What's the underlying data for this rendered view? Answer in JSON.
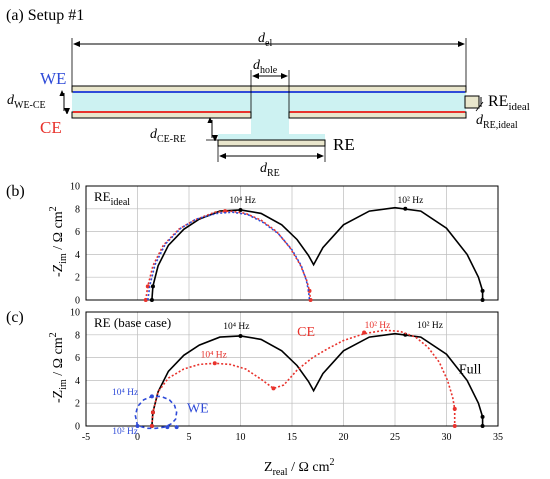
{
  "colors": {
    "black": "#000000",
    "red": "#e8322c",
    "blue": "#2f4bd8",
    "violet": "#6a3cc8",
    "electrolyte": "#cdf2f2",
    "electrode": "#e9e6cc",
    "grid": "#bdbdbd"
  },
  "setup": {
    "title": "(a) Setup #1",
    "we_label": "WE",
    "ce_label": "CE",
    "re_label": "RE",
    "re_ideal_label": "RE",
    "re_ideal_sub": "ideal",
    "d_el": "d",
    "d_el_sub": "el",
    "d_hole": "d",
    "d_hole_sub": "hole",
    "d_we_ce": "d",
    "d_we_ce_sub": "WE-CE",
    "d_ce_re": "d",
    "d_ce_re_sub": "CE-RE",
    "d_re": "d",
    "d_re_sub": "RE",
    "d_re_ideal": "d",
    "d_re_ideal_sub": "RE,ideal"
  },
  "chart_data": [
    {
      "type": "line",
      "panel_label": "(b)",
      "legend_text": "RE",
      "legend_sub": "ideal",
      "xlim": [
        -5,
        35
      ],
      "ylim": [
        0,
        10
      ],
      "yticks": [
        0,
        2,
        4,
        6,
        8,
        10
      ],
      "grid": true,
      "annotations": [
        {
          "text": "10⁴ Hz",
          "x": 10.2,
          "y": 8.5,
          "color": "#000000"
        },
        {
          "text": "10² Hz",
          "x": 26.5,
          "y": 8.5,
          "color": "#000000"
        }
      ],
      "series": [
        {
          "role": "full",
          "color": "#000000",
          "dash": "",
          "x": [
            1.4,
            1.5,
            2.0,
            3.0,
            4.5,
            6.0,
            8.0,
            10.0,
            12.0,
            14.0,
            15.5,
            16.6,
            17.1,
            18.0,
            20.0,
            22.5,
            25.0,
            27.5,
            30.0,
            32.0,
            33.1,
            33.5,
            33.5
          ],
          "y": [
            0.0,
            1.2,
            3.0,
            4.8,
            6.2,
            7.1,
            7.8,
            7.9,
            7.6,
            6.6,
            5.3,
            3.9,
            3.1,
            4.6,
            6.6,
            7.8,
            8.1,
            7.8,
            6.3,
            4.0,
            2.0,
            0.8,
            0.0
          ],
          "markers": [
            [
              1.4,
              0.0
            ],
            [
              1.5,
              1.2
            ],
            [
              10.0,
              7.9
            ],
            [
              26.0,
              8.0
            ],
            [
              33.5,
              0.8
            ],
            [
              33.5,
              0.0
            ]
          ]
        },
        {
          "role": "ideal-red",
          "color": "#e8322c",
          "dash": "2,2",
          "x": [
            0.8,
            1.0,
            1.5,
            2.5,
            4.0,
            5.5,
            7.5,
            9.0,
            10.5,
            12.0,
            13.5,
            14.8,
            15.8,
            16.4,
            16.7,
            16.8
          ],
          "y": [
            0.0,
            1.2,
            3.0,
            4.8,
            6.2,
            7.0,
            7.7,
            7.8,
            7.6,
            7.0,
            6.0,
            4.6,
            3.1,
            1.8,
            0.8,
            0.0
          ],
          "markers": [
            [
              0.8,
              0.0
            ],
            [
              1.0,
              1.2
            ],
            [
              8.5,
              7.8
            ],
            [
              16.7,
              0.8
            ],
            [
              16.8,
              0.0
            ]
          ]
        },
        {
          "role": "ideal-blue",
          "color": "#2f4bd8",
          "dash": "2,2",
          "x": [
            1.0,
            1.2,
            1.7,
            2.7,
            4.2,
            5.7,
            7.7,
            9.2,
            10.7,
            12.2,
            13.7,
            15.0,
            15.9,
            16.4,
            16.6,
            16.7
          ],
          "y": [
            0.0,
            1.3,
            3.1,
            4.9,
            6.3,
            7.1,
            7.6,
            7.7,
            7.5,
            6.8,
            5.8,
            4.4,
            3.0,
            1.7,
            0.8,
            0.0
          ],
          "markers": []
        }
      ]
    },
    {
      "type": "line",
      "panel_label": "(c)",
      "legend_text": "RE (base case)",
      "xlim": [
        -5,
        35
      ],
      "ylim": [
        0,
        10
      ],
      "yticks": [
        0,
        2,
        4,
        6,
        8,
        10
      ],
      "xticks": [
        -5,
        0,
        5,
        10,
        15,
        20,
        25,
        30,
        35
      ],
      "grid": true,
      "xlabel": "Z",
      "xlabel_sub": "real",
      "xlabel_unit": " / Ω cm",
      "xlabel_sup": "2",
      "ylabel": "-Z",
      "ylabel_sub": "im",
      "ylabel_unit": " / Ω cm",
      "ylabel_sup": "2",
      "annotations": [
        {
          "text": "10⁴ Hz",
          "x": 9.6,
          "y": 8.5,
          "color": "#000000"
        },
        {
          "text": "10² Hz",
          "x": 28.4,
          "y": 8.6,
          "color": "#000000"
        },
        {
          "text": "10⁴ Hz",
          "x": 7.4,
          "y": 6.0,
          "color": "#e8322c"
        },
        {
          "text": "10² Hz",
          "x": 23.3,
          "y": 8.6,
          "color": "#e8322c"
        },
        {
          "text": "10⁴ Hz",
          "x": -1.2,
          "y": 2.7,
          "color": "#2f4bd8"
        },
        {
          "text": "10² Hz",
          "x": -1.2,
          "y": -0.7,
          "color": "#2f4bd8"
        },
        {
          "text": "CE",
          "x": 15.5,
          "y": 7.9,
          "color": "#e8322c",
          "size": "big"
        },
        {
          "text": "Full",
          "x": 31.2,
          "y": 4.6,
          "color": "#000000",
          "size": "big"
        },
        {
          "text": "WE",
          "x": 4.8,
          "y": 1.2,
          "color": "#2f4bd8",
          "size": "big"
        }
      ],
      "series": [
        {
          "role": "full",
          "color": "#000000",
          "dash": "",
          "x": [
            1.4,
            1.5,
            2.0,
            3.0,
            4.5,
            6.0,
            8.0,
            10.0,
            12.0,
            14.0,
            15.5,
            16.6,
            17.1,
            18.0,
            20.0,
            22.5,
            25.0,
            27.5,
            30.0,
            32.0,
            33.1,
            33.5,
            33.5
          ],
          "y": [
            0.0,
            1.2,
            3.0,
            4.8,
            6.2,
            7.1,
            7.8,
            7.9,
            7.6,
            6.6,
            5.3,
            3.9,
            3.1,
            4.6,
            6.6,
            7.8,
            8.1,
            7.8,
            6.3,
            4.0,
            2.0,
            0.8,
            0.0
          ],
          "markers": [
            [
              1.4,
              0.0
            ],
            [
              1.5,
              1.2
            ],
            [
              10.0,
              7.9
            ],
            [
              26.0,
              8.0
            ],
            [
              33.5,
              0.8
            ],
            [
              33.5,
              0.0
            ]
          ]
        },
        {
          "role": "ce",
          "color": "#e8322c",
          "dash": "2,2",
          "x": [
            1.4,
            1.5,
            2.0,
            3.0,
            4.5,
            6.0,
            7.5,
            9.0,
            10.5,
            12.0,
            13.2,
            14.2,
            15.5,
            17.0,
            18.5,
            20.0,
            22.0,
            24.0,
            25.5,
            27.0,
            28.2,
            29.3,
            30.1,
            30.6,
            30.8,
            30.8
          ],
          "y": [
            0.0,
            1.2,
            3.0,
            4.2,
            5.0,
            5.4,
            5.5,
            5.4,
            5.0,
            4.1,
            3.3,
            3.6,
            4.9,
            6.0,
            6.8,
            7.5,
            8.1,
            8.4,
            8.3,
            7.8,
            6.9,
            5.6,
            4.0,
            2.5,
            1.5,
            0.0
          ],
          "markers": [
            [
              1.4,
              0.0
            ],
            [
              1.5,
              1.2
            ],
            [
              7.5,
              5.5
            ],
            [
              13.2,
              3.3
            ],
            [
              22.0,
              8.2
            ],
            [
              30.8,
              1.5
            ],
            [
              30.8,
              0.0
            ]
          ]
        },
        {
          "role": "we",
          "color": "#2f4bd8",
          "dash": "4,3",
          "x": [
            0.0,
            -0.2,
            0.0,
            0.6,
            1.4,
            2.3,
            3.1,
            3.6,
            3.8,
            3.7,
            3.3,
            2.6,
            1.8,
            1.0,
            0.5,
            0.2,
            0.0
          ],
          "y": [
            0.0,
            0.9,
            1.7,
            2.3,
            2.6,
            2.6,
            2.3,
            1.8,
            1.2,
            0.6,
            0.2,
            -0.1,
            -0.2,
            -0.2,
            -0.1,
            0.0,
            0.0
          ],
          "markers": [
            [
              0.0,
              0.0
            ],
            [
              1.4,
              2.6
            ],
            [
              2.9,
              -0.1
            ],
            [
              3.8,
              -0.1
            ]
          ]
        }
      ]
    }
  ]
}
